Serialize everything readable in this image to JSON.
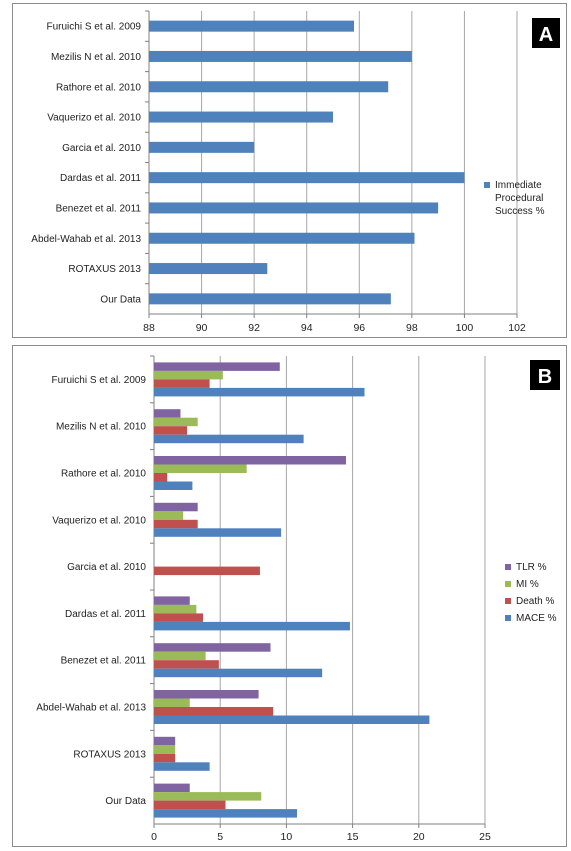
{
  "chart_data": [
    {
      "type": "bar",
      "orientation": "horizontal",
      "panel_label": "A",
      "categories": [
        "Furuichi S et al. 2009",
        "Mezilis N et al. 2010",
        "Rathore et al. 2010",
        "Vaquerizo et al. 2010",
        "Garcia et al. 2010",
        "Dardas et al. 2011",
        "Benezet et al.  2011",
        "Abdel-Wahab et al. 2013",
        "ROTAXUS 2013",
        "Our Data"
      ],
      "series": [
        {
          "name": "Immediate Procedural Success %",
          "color": "#4f81bd",
          "values": [
            95.8,
            98,
            97.1,
            95,
            92,
            100,
            99,
            98.1,
            92.5,
            97.2
          ]
        }
      ],
      "xlim": [
        88,
        102
      ],
      "xticks": [
        88,
        90,
        92,
        94,
        96,
        98,
        100,
        102
      ],
      "grid": "vertical",
      "legend_position": "right"
    },
    {
      "type": "bar",
      "orientation": "horizontal",
      "panel_label": "B",
      "categories": [
        "Furuichi S et al. 2009",
        "Mezilis N et al. 2010",
        "Rathore et al. 2010",
        "Vaquerizo et al. 2010",
        "Garcia et al. 2010",
        "Dardas et al. 2011",
        "Benezet et al.  2011",
        "Abdel-Wahab et al. 2013",
        "ROTAXUS 2013",
        "Our Data"
      ],
      "series": [
        {
          "name": "TLR %",
          "color": "#8064a2",
          "values": [
            9.5,
            2,
            14.5,
            3.3,
            0,
            2.7,
            8.8,
            7.9,
            1.6,
            2.7
          ]
        },
        {
          "name": "MI %",
          "color": "#9bbb59",
          "values": [
            5.2,
            3.3,
            7,
            2.2,
            0,
            3.2,
            3.9,
            2.7,
            1.6,
            8.1
          ]
        },
        {
          "name": "Death %",
          "color": "#c0504d",
          "values": [
            4.2,
            2.5,
            1,
            3.3,
            8,
            3.7,
            4.9,
            9,
            1.6,
            5.4
          ]
        },
        {
          "name": "MACE %",
          "color": "#4f81bd",
          "values": [
            15.9,
            11.3,
            2.9,
            9.6,
            0,
            14.8,
            12.7,
            20.8,
            4.2,
            10.8
          ]
        }
      ],
      "xlim": [
        0,
        25
      ],
      "xticks": [
        0,
        5,
        10,
        15,
        20,
        25
      ],
      "grid": "vertical",
      "legend_position": "right"
    }
  ]
}
